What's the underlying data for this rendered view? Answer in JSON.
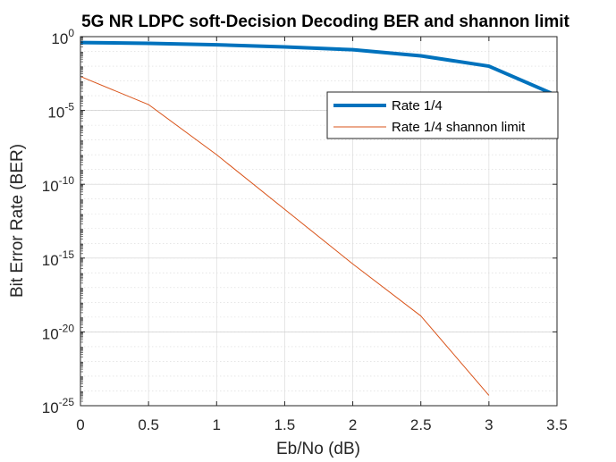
{
  "chart_data": {
    "type": "line",
    "title": "5G NR LDPC soft-Decision Decoding BER and shannon limit",
    "xlabel": "Eb/No (dB)",
    "ylabel": "Bit Error Rate (BER)",
    "xlim": [
      0,
      3.5
    ],
    "ylim": [
      1e-25,
      1
    ],
    "yscale": "log",
    "xticks": [
      0,
      0.5,
      1,
      1.5,
      2,
      2.5,
      3,
      3.5
    ],
    "xtick_labels": [
      "0",
      "0.5",
      "1",
      "1.5",
      "2",
      "2.5",
      "3",
      "3.5"
    ],
    "yticks": [
      {
        "base": "10",
        "exp": "0",
        "value": 1
      },
      {
        "base": "10",
        "exp": "-5",
        "value": 1e-05
      },
      {
        "base": "10",
        "exp": "-10",
        "value": 1e-10
      },
      {
        "base": "10",
        "exp": "-15",
        "value": 1e-15
      },
      {
        "base": "10",
        "exp": "-20",
        "value": 1e-20
      },
      {
        "base": "10",
        "exp": "-25",
        "value": 1e-25
      }
    ],
    "grid": true,
    "legend_position": "top-right",
    "series": [
      {
        "name": "Rate 1/4",
        "color": "#0072BD",
        "x": [
          0,
          0.5,
          1,
          1.5,
          2,
          2.5,
          3,
          3.5
        ],
        "y": [
          0.4,
          0.35,
          0.28,
          0.2,
          0.13,
          0.05,
          0.01,
          0.0001
        ]
      },
      {
        "name": "Rate 1/4 shannon limit",
        "color": "#D95319",
        "x": [
          0,
          0.5,
          1,
          1.5,
          2,
          2.5,
          3
        ],
        "y": [
          0.002,
          2.5e-05,
          1e-08,
          2e-12,
          4e-16,
          1.2e-19,
          5e-25
        ]
      }
    ]
  }
}
